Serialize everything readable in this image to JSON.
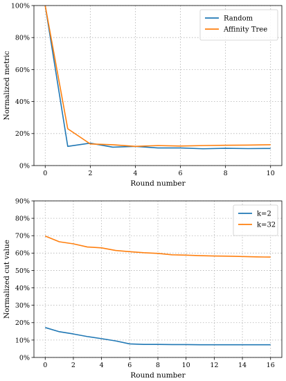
{
  "chart_data": [
    {
      "type": "line",
      "xlabel": "Round number",
      "ylabel": "Normalized metric",
      "xlim": [
        -0.5,
        10.5
      ],
      "ylim": [
        0,
        100
      ],
      "xticks": [
        0,
        2,
        4,
        6,
        8,
        10
      ],
      "yticks": [
        0,
        20,
        40,
        60,
        80,
        100
      ],
      "ytick_labels": [
        "0%",
        "20%",
        "40%",
        "60%",
        "80%",
        "100%"
      ],
      "grid": true,
      "legend": "top-right",
      "x": [
        0,
        1,
        2,
        3,
        4,
        5,
        6,
        7,
        8,
        9,
        10
      ],
      "series": [
        {
          "name": "Random",
          "color": "#1f77b4",
          "values": [
            100,
            12,
            14,
            11.5,
            12,
            11,
            11,
            10.5,
            10.8,
            10.6,
            10.7
          ]
        },
        {
          "name": "Affinity Tree",
          "color": "#ff7f0e",
          "values": [
            100,
            23,
            13.5,
            13,
            12,
            12.5,
            12.2,
            12.5,
            12.7,
            12.8,
            13
          ]
        }
      ]
    },
    {
      "type": "line",
      "xlabel": "Round number",
      "ylabel": "Normalized cut value",
      "xlim": [
        -0.8,
        16.8
      ],
      "ylim": [
        0,
        90
      ],
      "xticks": [
        0,
        2,
        4,
        6,
        8,
        10,
        12,
        14,
        16
      ],
      "yticks": [
        0,
        10,
        20,
        30,
        40,
        50,
        60,
        70,
        80,
        90
      ],
      "ytick_labels": [
        "0%",
        "10%",
        "20%",
        "30%",
        "40%",
        "50%",
        "60%",
        "70%",
        "80%",
        "90%"
      ],
      "grid": true,
      "legend": "top-right",
      "x": [
        0,
        1,
        2,
        3,
        4,
        5,
        6,
        7,
        8,
        9,
        10,
        11,
        12,
        13,
        14,
        15,
        16
      ],
      "series": [
        {
          "name": "k=2",
          "color": "#1f77b4",
          "values": [
            17.2,
            14.8,
            13.5,
            12,
            10.8,
            9.5,
            7.8,
            7.5,
            7.5,
            7.4,
            7.4,
            7.3,
            7.3,
            7.3,
            7.3,
            7.3,
            7.3
          ]
        },
        {
          "name": "k=32",
          "color": "#ff7f0e",
          "values": [
            69.8,
            66.5,
            65.3,
            63.5,
            63,
            61.5,
            60.8,
            60.2,
            59.8,
            59,
            58.8,
            58.5,
            58.3,
            58.2,
            58,
            57.8,
            57.7
          ]
        }
      ]
    }
  ]
}
